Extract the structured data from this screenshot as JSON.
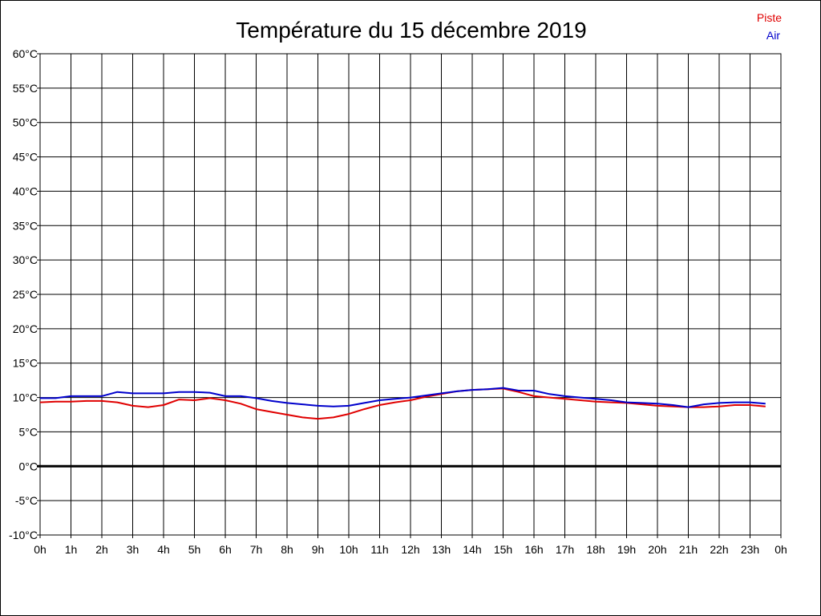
{
  "chart_data": {
    "type": "line",
    "title": "Température du 15 décembre 2019",
    "xlabel": "",
    "ylabel": "",
    "x_ticks": [
      "0h",
      "1h",
      "2h",
      "3h",
      "4h",
      "5h",
      "6h",
      "7h",
      "8h",
      "9h",
      "10h",
      "11h",
      "12h",
      "13h",
      "14h",
      "15h",
      "16h",
      "17h",
      "18h",
      "19h",
      "20h",
      "21h",
      "22h",
      "23h",
      "0h"
    ],
    "y_ticks": [
      "60°C",
      "55°C",
      "50°C",
      "45°C",
      "40°C",
      "35°C",
      "30°C",
      "25°C",
      "20°C",
      "15°C",
      "10°C",
      "5°C",
      "0°C",
      "-5°C",
      "-10°C"
    ],
    "xlim": [
      0,
      24
    ],
    "ylim": [
      -10,
      60
    ],
    "grid": true,
    "legend_position": "top-right",
    "series": [
      {
        "name": "Piste",
        "color": "#e00000",
        "x": [
          0,
          0.5,
          1,
          1.5,
          2,
          2.5,
          3,
          3.5,
          4,
          4.5,
          5,
          5.5,
          6,
          6.5,
          7,
          7.5,
          8,
          8.5,
          9,
          9.5,
          10,
          10.5,
          11,
          11.5,
          12,
          12.5,
          13,
          13.5,
          14,
          14.5,
          15,
          15.5,
          16,
          16.5,
          17,
          17.5,
          18,
          18.5,
          19,
          19.5,
          20,
          20.5,
          21,
          21.5,
          22,
          22.5,
          23,
          23.5
        ],
        "values": [
          9.3,
          9.4,
          9.4,
          9.5,
          9.5,
          9.3,
          8.8,
          8.6,
          8.9,
          9.7,
          9.6,
          9.9,
          9.6,
          9.1,
          8.3,
          7.9,
          7.5,
          7.1,
          6.9,
          7.1,
          7.6,
          8.3,
          8.9,
          9.3,
          9.6,
          10.1,
          10.5,
          10.9,
          11.1,
          11.2,
          11.3,
          10.8,
          10.2,
          10.0,
          9.8,
          9.6,
          9.4,
          9.3,
          9.2,
          9.0,
          8.8,
          8.7,
          8.6,
          8.6,
          8.7,
          8.9,
          8.9,
          8.7
        ]
      },
      {
        "name": "Air",
        "color": "#0000cc",
        "x": [
          0,
          0.5,
          1,
          1.5,
          2,
          2.5,
          3,
          3.5,
          4,
          4.5,
          5,
          5.5,
          6,
          6.5,
          7,
          7.5,
          8,
          8.5,
          9,
          9.5,
          10,
          10.5,
          11,
          11.5,
          12,
          12.5,
          13,
          13.5,
          14,
          14.5,
          15,
          15.5,
          16,
          16.5,
          17,
          17.5,
          18,
          18.5,
          19,
          19.5,
          20,
          20.5,
          21,
          21.5,
          22,
          22.5,
          23,
          23.5
        ],
        "values": [
          9.9,
          9.9,
          10.2,
          10.2,
          10.2,
          10.8,
          10.6,
          10.6,
          10.6,
          10.8,
          10.8,
          10.7,
          10.2,
          10.2,
          9.9,
          9.5,
          9.2,
          9.0,
          8.8,
          8.7,
          8.8,
          9.2,
          9.6,
          9.8,
          10.0,
          10.3,
          10.6,
          10.9,
          11.1,
          11.2,
          11.4,
          11.0,
          11.0,
          10.5,
          10.2,
          10.0,
          9.8,
          9.6,
          9.3,
          9.2,
          9.1,
          8.9,
          8.6,
          9.0,
          9.2,
          9.3,
          9.3,
          9.1
        ]
      }
    ]
  }
}
